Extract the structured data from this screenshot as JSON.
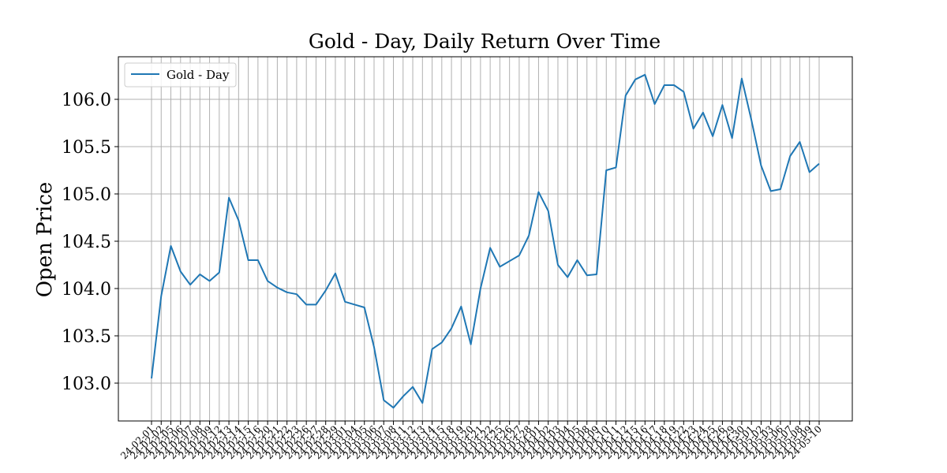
{
  "chart_data": {
    "type": "line",
    "title": "Gold - Day, Daily Return Over Time",
    "xlabel": "",
    "ylabel": "Open Price",
    "ylim": [
      102.6,
      106.45
    ],
    "yticks": [
      103.0,
      103.5,
      104.0,
      104.5,
      105.0,
      105.5,
      106.0
    ],
    "ytick_labels": [
      "103.0",
      "103.5",
      "104.0",
      "104.5",
      "105.0",
      "105.5",
      "106.0"
    ],
    "grid": true,
    "legend_position": "top-left",
    "x": [
      "24-02-01",
      "24-02-02",
      "24-02-05",
      "24-02-06",
      "24-02-07",
      "24-02-08",
      "24-02-09",
      "24-02-12",
      "24-02-13",
      "24-02-14",
      "24-02-15",
      "24-02-16",
      "24-02-20",
      "24-02-21",
      "24-02-22",
      "24-02-23",
      "24-02-26",
      "24-02-27",
      "24-02-28",
      "24-02-29",
      "24-03-01",
      "24-03-04",
      "24-03-05",
      "24-03-06",
      "24-03-07",
      "24-03-08",
      "24-03-11",
      "24-03-12",
      "24-03-13",
      "24-03-14",
      "24-03-15",
      "24-03-18",
      "24-03-19",
      "24-03-20",
      "24-03-21",
      "24-03-22",
      "24-03-25",
      "24-03-26",
      "24-03-27",
      "24-03-28",
      "24-04-01",
      "24-04-02",
      "24-04-03",
      "24-04-04",
      "24-04-05",
      "24-04-08",
      "24-04-09",
      "24-04-10",
      "24-04-11",
      "24-04-12",
      "24-04-15",
      "24-04-16",
      "24-04-17",
      "24-04-18",
      "24-04-19",
      "24-04-22",
      "24-04-23",
      "24-04-24",
      "24-04-25",
      "24-04-26",
      "24-04-29",
      "24-04-30",
      "24-05-01",
      "24-05-02",
      "24-05-03",
      "24-05-06",
      "24-05-07",
      "24-05-08",
      "24-05-09",
      "24-05-10"
    ],
    "series": [
      {
        "name": "Gold - Day",
        "color": "#1f77b4",
        "values": [
          103.05,
          103.92,
          104.45,
          104.18,
          104.04,
          104.15,
          104.08,
          104.17,
          104.96,
          104.72,
          104.3,
          104.3,
          104.08,
          104.01,
          103.96,
          103.94,
          103.83,
          103.83,
          103.98,
          104.16,
          103.86,
          103.83,
          103.8,
          103.38,
          102.82,
          102.74,
          102.86,
          102.96,
          102.79,
          103.36,
          103.43,
          103.58,
          103.81,
          103.41,
          104.0,
          104.43,
          104.23,
          104.29,
          104.35,
          104.56,
          105.02,
          104.82,
          104.25,
          104.12,
          104.3,
          104.14,
          104.15,
          105.25,
          105.28,
          106.04,
          106.21,
          106.26,
          105.95,
          106.15,
          106.15,
          106.08,
          105.69,
          105.86,
          105.61,
          105.94,
          105.59,
          106.22,
          105.78,
          105.3,
          105.03,
          105.05,
          105.4,
          105.55,
          105.23,
          105.32
        ]
      }
    ]
  }
}
